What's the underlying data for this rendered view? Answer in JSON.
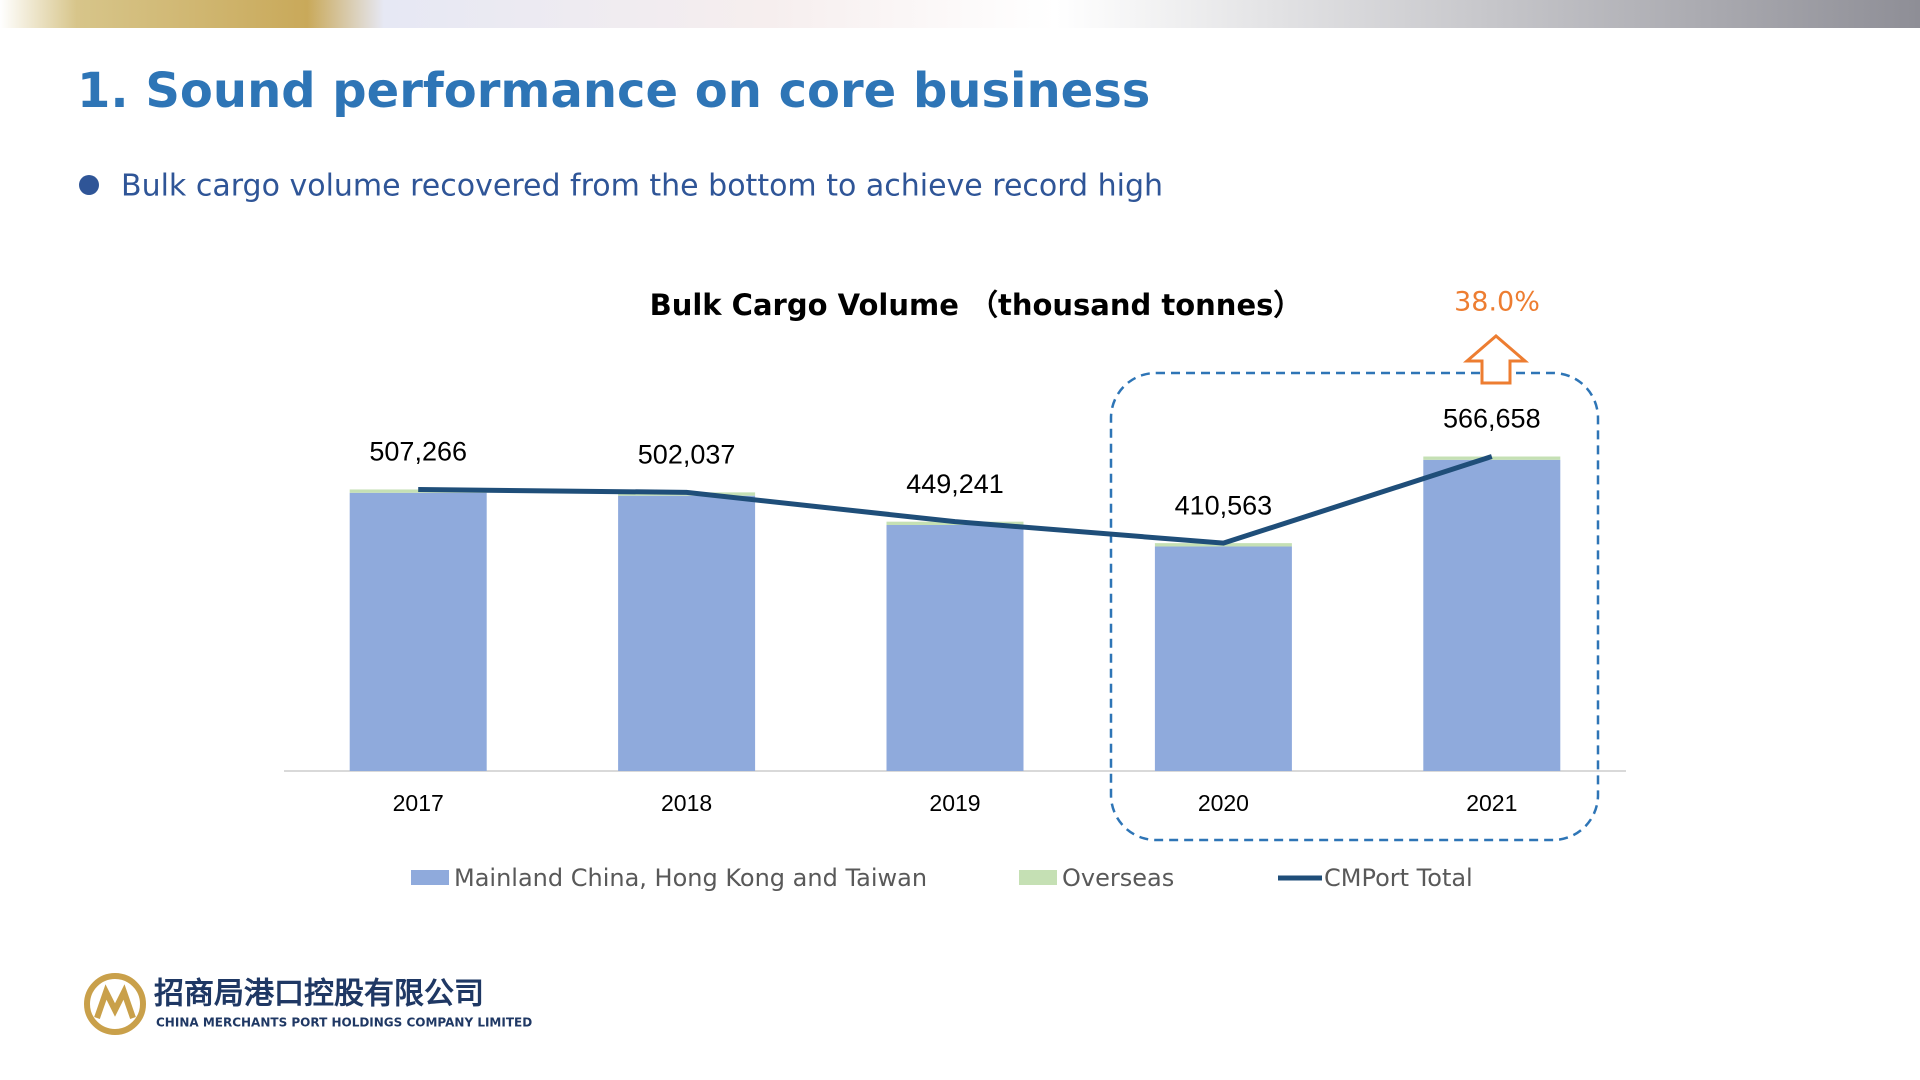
{
  "header": {
    "title": "1. Sound performance on core business",
    "bullet": "Bulk cargo volume recovered from the bottom to achieve record high"
  },
  "chart_data": {
    "type": "bar",
    "stacked": true,
    "title": "Bulk Cargo Volume （thousand tonnes）",
    "categories": [
      "2017",
      "2018",
      "2019",
      "2020",
      "2021"
    ],
    "series": [
      {
        "name": "Mainland China, Hong Kong and Taiwan",
        "color": "#8faadc",
        "type": "bar",
        "values": [
          501266,
          496037,
          443241,
          404563,
          560658
        ]
      },
      {
        "name": "Overseas",
        "color": "#c5e0b4",
        "type": "bar",
        "values": [
          6000,
          6000,
          6000,
          6000,
          6000
        ]
      },
      {
        "name": "CMPort Total",
        "color": "#1f4e79",
        "type": "line",
        "values": [
          507266,
          502037,
          449241,
          410563,
          566658
        ],
        "value_labels": [
          "507,266",
          "502,037",
          "449,241",
          "410,563",
          "566,658"
        ]
      }
    ],
    "ylim": [
      0,
      600000
    ],
    "annotation": "38.0%"
  },
  "footer": {
    "logo_cn": "招商局港口控股有限公司",
    "logo_en": "CHINA MERCHANTS PORT HOLDINGS COMPANY LIMITED"
  }
}
